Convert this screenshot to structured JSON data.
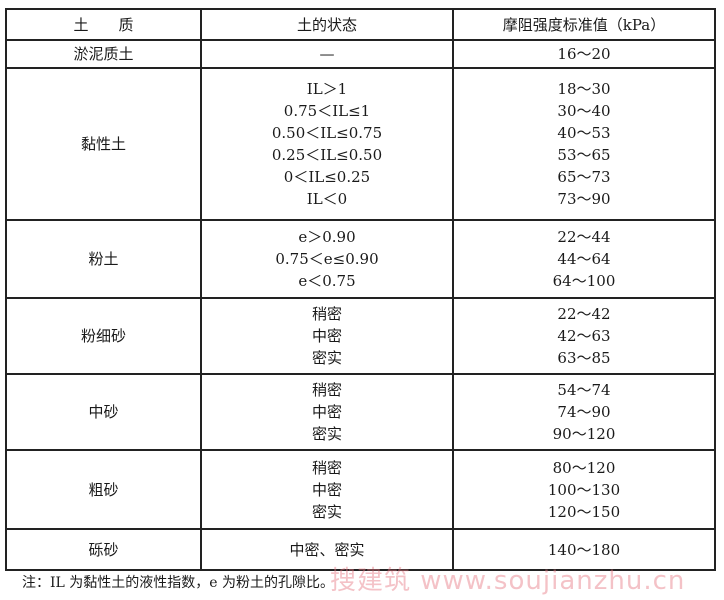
{
  "headers": [
    "土　　质",
    "土的状态",
    "摩阻强度标准值（kPa）"
  ],
  "rows": [
    {
      "soil": "淤泥质土",
      "states": [
        "—"
      ],
      "values": [
        "16～20"
      ]
    },
    {
      "soil": "黏性土",
      "states": [
        "IL＞1",
        "0.75＜IL≤1",
        "0.50＜IL≤0.75",
        "0.25＜IL≤0.50",
        "0＜IL≤0.25",
        "IL＜0"
      ],
      "values": [
        "18～30",
        "30～40",
        "40～53",
        "53～65",
        "65～73",
        "73～90"
      ]
    },
    {
      "soil": "粉土",
      "states": [
        "e＞0.90",
        "0.75＜e≤0.90",
        "e＜0.75"
      ],
      "values": [
        "22～44",
        "44～64",
        "64～100"
      ]
    },
    {
      "soil": "粉细砂",
      "states": [
        "稍密",
        "中密",
        "密实"
      ],
      "values": [
        "22～42",
        "42～63",
        "63～85"
      ]
    },
    {
      "soil": "中砂",
      "states": [
        "稍密",
        "中密",
        "密实"
      ],
      "values": [
        "54～74",
        "74～90",
        "90～120"
      ]
    },
    {
      "soil": "粗砂",
      "states": [
        "稍密",
        "中密",
        "密实"
      ],
      "values": [
        "80～120",
        "100～130",
        "120～150"
      ]
    },
    {
      "soil": "砾砂",
      "states": [
        "中密、密实"
      ],
      "values": [
        "140～180"
      ]
    }
  ],
  "note": "注：IL 为黏性土的液性指数，e 为粉土的孔隙比。",
  "watermark": "搜建筑 www.soujianzhu.cn"
}
